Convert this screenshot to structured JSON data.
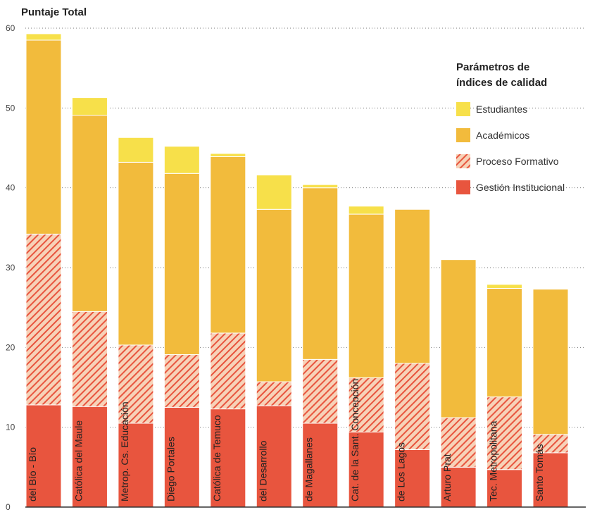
{
  "chart_data": {
    "type": "bar",
    "stacked": true,
    "ylabel": "Puntaje Total",
    "ylim": [
      0,
      60
    ],
    "yticks": [
      0,
      10,
      20,
      30,
      40,
      50,
      60
    ],
    "grid": "horizontal dotted",
    "legend": {
      "title_line1": "Parámetros de",
      "title_line2": "índices de calidad",
      "placement": "top-right"
    },
    "categories": [
      "del Bío - Bío",
      "Católica del Maule",
      "Metrop. Cs. Educación",
      "Diego Portales",
      "Católica de Temuco",
      "del Desarrollo",
      "de Magallanes",
      "Cat. de la Sant. Concepción",
      "de Los Lagos",
      "Arturo Prat",
      "Tec. Metropolitana",
      "Santo Tomás"
    ],
    "series": [
      {
        "name": "Gestión Institucional",
        "color": "#e8553e",
        "pattern": "solid",
        "values": [
          12.8,
          12.6,
          10.5,
          12.5,
          12.3,
          12.7,
          10.5,
          9.4,
          7.2,
          5.0,
          4.7,
          6.8
        ]
      },
      {
        "name": "Proceso Formativo",
        "color": "#e8553e",
        "pattern": "hatched",
        "values": [
          21.4,
          11.9,
          9.8,
          6.6,
          9.5,
          3.0,
          8.0,
          6.8,
          10.8,
          6.2,
          9.1,
          2.3
        ]
      },
      {
        "name": "Académicos",
        "color": "#f2bb3c",
        "pattern": "solid",
        "values": [
          24.3,
          24.6,
          22.9,
          22.7,
          22.1,
          21.6,
          21.5,
          20.5,
          19.3,
          19.8,
          13.6,
          18.2
        ]
      },
      {
        "name": "Estudiantes",
        "color": "#f7e04a",
        "pattern": "solid",
        "values": [
          0.8,
          2.2,
          3.1,
          3.4,
          0.4,
          4.3,
          0.4,
          1.0,
          0.0,
          0.0,
          0.5,
          0.0
        ]
      }
    ]
  }
}
